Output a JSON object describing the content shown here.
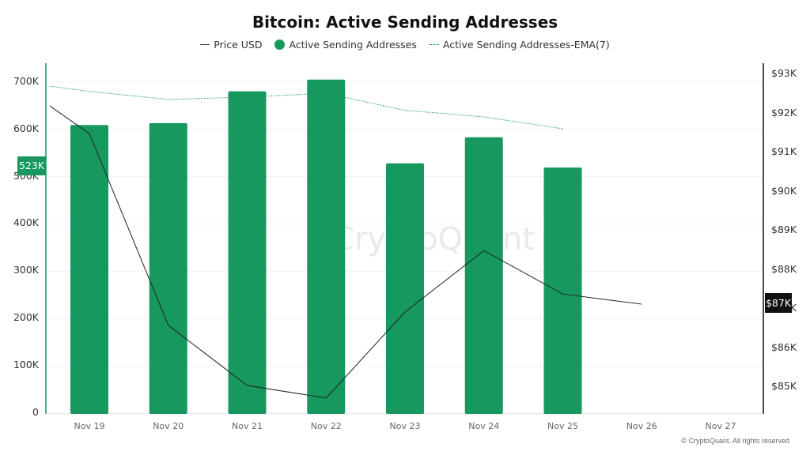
{
  "header": {
    "title": "Bitcoin: Active Sending Addresses"
  },
  "legend": {
    "items": [
      {
        "label": "Price USD",
        "style": "line",
        "color": "#333333"
      },
      {
        "label": "Active Sending Addresses",
        "style": "dot",
        "color": "#16985e"
      },
      {
        "label": "Active Sending Addresses-EMA(7)",
        "style": "dashed",
        "color": "#16985e"
      }
    ]
  },
  "axes": {
    "left_ticks": [
      "0",
      "100K",
      "200K",
      "300K",
      "400K",
      "500K",
      "600K",
      "700K"
    ],
    "right_ticks": [
      "$85K",
      "$86K",
      "$87K",
      "$88K",
      "$89K",
      "$90K",
      "$91K",
      "$92K",
      "$93K"
    ],
    "x_ticks": [
      "Nov 19",
      "Nov 20",
      "Nov 21",
      "Nov 22",
      "Nov 23",
      "Nov 24",
      "Nov 25",
      "Nov 26",
      "Nov 27"
    ]
  },
  "badges": {
    "left_current": "523K",
    "right_current": "$87K"
  },
  "watermark": "CryptoQuant",
  "footer": {
    "copyright": "© CryptoQuant. All rights reserved"
  },
  "colors": {
    "bar": "#16985e",
    "ema": "#16985e",
    "price": "#222222",
    "left_axis": "#16985e",
    "right_axis": "#111111"
  },
  "chart_data": {
    "type": "bar",
    "title": "Bitcoin: Active Sending Addresses",
    "categories": [
      "Nov 19",
      "Nov 20",
      "Nov 21",
      "Nov 22",
      "Nov 23",
      "Nov 24",
      "Nov 25",
      "Nov 26",
      "Nov 27"
    ],
    "series": [
      {
        "name": "Active Sending Addresses",
        "type": "bar",
        "axis": "left",
        "values": [
          609000,
          613000,
          680000,
          705000,
          528000,
          583000,
          519000,
          null,
          null
        ]
      },
      {
        "name": "Active Sending Addresses-EMA(7)",
        "type": "line",
        "style": "dashed",
        "axis": "left",
        "values": [
          680000,
          663000,
          668000,
          676000,
          640000,
          626000,
          601000,
          null,
          null
        ],
        "start_value_before_nov19": 691000
      },
      {
        "name": "Price USD",
        "type": "line",
        "axis": "right",
        "values": [
          91480,
          86580,
          85040,
          84720,
          86920,
          88490,
          87380,
          87120,
          null
        ],
        "start_value_before_nov19": 92190
      }
    ],
    "left_axis": {
      "label": "",
      "ylim": [
        0,
        730000
      ],
      "ticks": [
        0,
        100000,
        200000,
        300000,
        400000,
        500000,
        600000,
        700000
      ]
    },
    "right_axis": {
      "label": "",
      "ylim": [
        84300,
        93300
      ],
      "ticks": [
        85000,
        86000,
        87000,
        88000,
        89000,
        90000,
        91000,
        92000,
        93000
      ]
    },
    "current_markers": {
      "left": "523K",
      "right": "$87K"
    },
    "grid": true,
    "legend_position": "top"
  }
}
